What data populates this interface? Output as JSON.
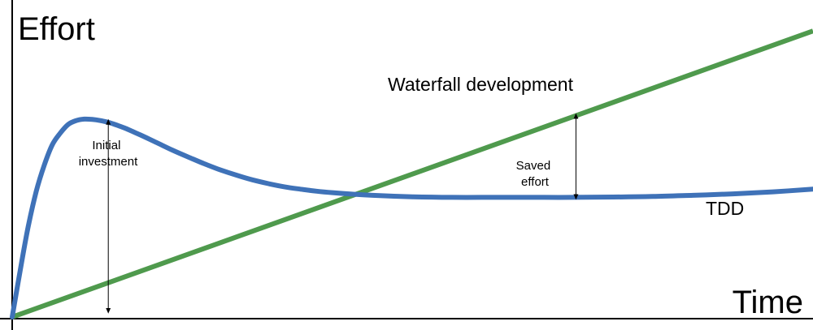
{
  "chart_data": {
    "type": "line",
    "title": "",
    "ylabel": "Effort",
    "xlabel": "Time",
    "xlim": [
      0,
      100
    ],
    "ylim": [
      0,
      100
    ],
    "grid": false,
    "tick_labels": false,
    "series": [
      {
        "name": "Waterfall development",
        "color": "#4f9a4d",
        "x": [
          0,
          100
        ],
        "y": [
          0,
          98
        ]
      },
      {
        "name": "TDD",
        "color": "#3f72b8",
        "x": [
          0,
          1,
          2,
          3,
          4,
          5,
          6,
          7,
          8,
          9,
          10,
          11,
          12,
          13,
          14,
          15,
          16,
          18,
          20,
          22,
          24,
          26,
          28,
          30,
          32,
          34,
          36,
          38,
          40,
          45,
          50,
          55,
          60,
          65,
          70,
          75,
          80,
          85,
          90,
          95,
          100
        ],
        "y": [
          0,
          16,
          31,
          43,
          52,
          59,
          63,
          66,
          67.3,
          67.8,
          67.7,
          67.3,
          66.7,
          65.8,
          64.8,
          63.6,
          62.4,
          59.8,
          57.2,
          54.8,
          52.5,
          50.4,
          48.6,
          47,
          45.7,
          44.6,
          43.8,
          43.1,
          42.6,
          41.7,
          41.2,
          41,
          41,
          41,
          41,
          41.1,
          41.3,
          41.7,
          42.2,
          42.9,
          43.8
        ]
      }
    ],
    "annotations": [
      {
        "id": "initial-investment",
        "lines": [
          "Initial",
          "investment"
        ],
        "x": 12,
        "y_from": 2,
        "y_to": 67
      },
      {
        "id": "saved-effort",
        "lines": [
          "Saved",
          "effort"
        ],
        "x": 70.4,
        "y_from": 41,
        "y_to": 69
      }
    ]
  }
}
